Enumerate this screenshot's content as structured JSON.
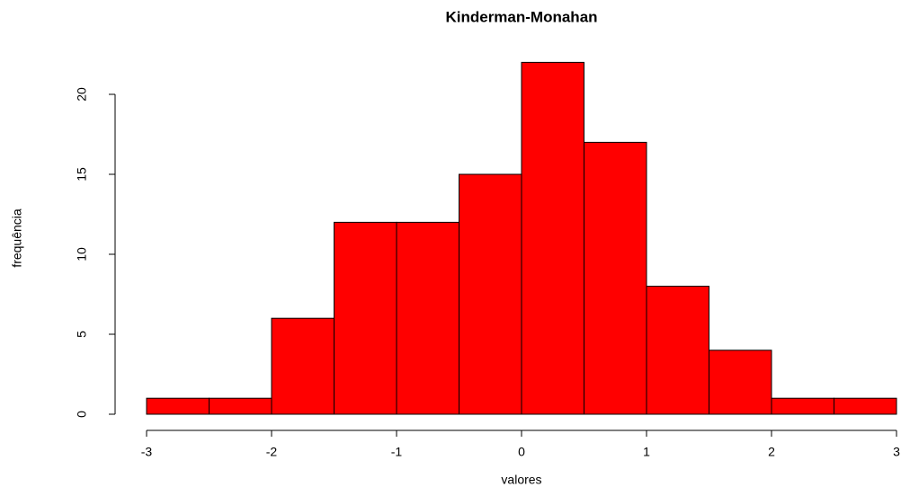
{
  "chart_data": {
    "type": "histogram",
    "title": "Kinderman-Monahan",
    "x_label": "valores",
    "y_label": "frequência",
    "bins": [
      -3,
      -2.5,
      -2,
      -1.5,
      -1,
      -0.5,
      0,
      0.5,
      1,
      1.5,
      2,
      2.5,
      3
    ],
    "values": [
      1,
      1,
      6,
      12,
      12,
      15,
      22,
      17,
      8,
      4,
      1,
      1
    ],
    "color": "#ff0000",
    "xlim": [
      -3,
      3
    ],
    "xticks": [
      -3,
      -2,
      -1,
      0,
      1,
      2,
      3
    ],
    "ylim": [
      0,
      22
    ],
    "yticks": [
      0,
      5,
      10,
      15,
      20
    ]
  }
}
